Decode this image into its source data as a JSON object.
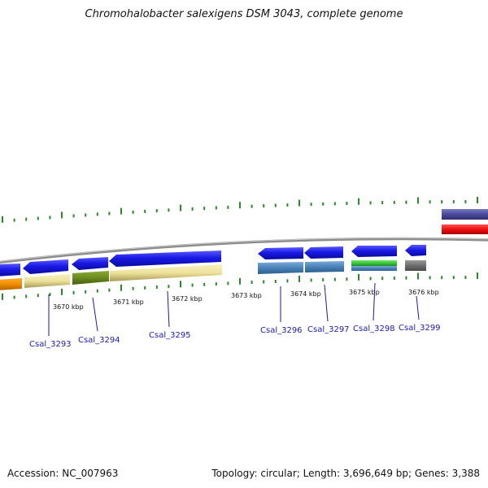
{
  "title": "Chromohalobacter salexigens DSM 3043, complete genome",
  "footer": {
    "accession": "Accession: NC_007963",
    "summary": "Topology: circular; Length: 3,696,649 bp; Genes: 3,388"
  },
  "kbp_labels": [
    "3670 kbp",
    "3671 kbp",
    "3672 kbp",
    "3673 kbp",
    "3674 kbp",
    "3675 kbp",
    "3676 kbp"
  ],
  "gene_labels": [
    "Csal_3293",
    "Csal_3294",
    "Csal_3295",
    "Csal_3296",
    "Csal_3297",
    "Csal_3298",
    "Csal_3299"
  ],
  "colors": {
    "cds": "#1a1ae6",
    "cog_orange": "#f08c00",
    "cog_khaki": "#eee29a",
    "cog_olive": "#6b8a1f",
    "cog_steel": "#4a82b8",
    "cog_green": "#38c838",
    "cog_gray": "#6e6e6e",
    "cog_navy": "#4a4a9a",
    "cog_red": "#ee1010",
    "backbone": "#8c8c8c",
    "gc_skew": "#2a8a2a",
    "label": "#1a1aa8"
  }
}
